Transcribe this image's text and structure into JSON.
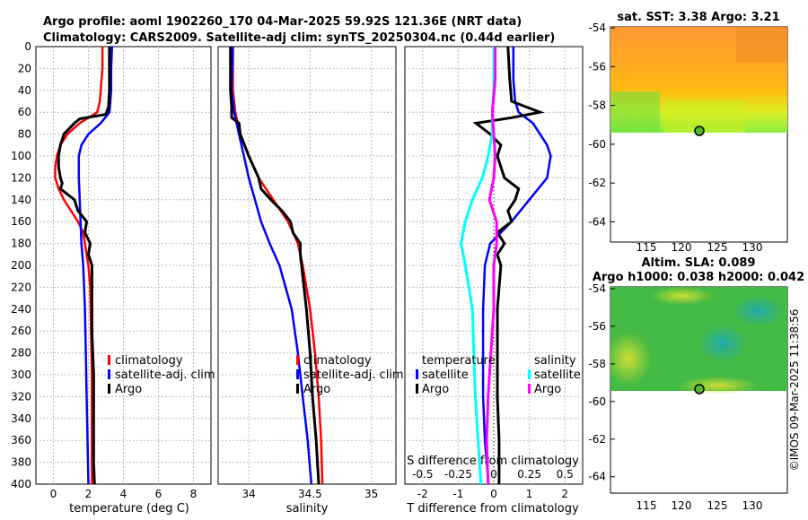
{
  "header": {
    "line1": "Argo profile: aoml 1902260_170 04-Mar-2025 59.92S 121.36E (NRT data)",
    "line2": "Climatology: CARS2009. Satellite-adj clim: synTS_20250304.nc (0.44d earlier)"
  },
  "footer": {
    "credit": "©IMOS 09-Mar-2025 11:38:56"
  },
  "colors": {
    "climatology": "#ff0000",
    "satellite": "#0000ff",
    "argo": "#000000",
    "sat_s": "#00ffff",
    "argo_s": "#ff00ff"
  },
  "chart_data": [
    {
      "type": "line",
      "id": "temperature",
      "xlabel": "temperature (deg C)",
      "ylabel": "",
      "xlim": [
        -1,
        9
      ],
      "ylim": [
        400,
        0
      ],
      "xticks": [
        "0",
        "2",
        "4",
        "6",
        "8"
      ],
      "yticks": [
        "0",
        "20",
        "40",
        "60",
        "80",
        "100",
        "120",
        "140",
        "160",
        "180",
        "200",
        "220",
        "240",
        "260",
        "280",
        "300",
        "320",
        "340",
        "360",
        "380",
        "400"
      ],
      "legend": [
        "climatology",
        "satellite-adj. clim",
        "Argo"
      ],
      "series": [
        {
          "name": "climatology",
          "depth": [
            0,
            20,
            40,
            50,
            60,
            70,
            80,
            90,
            100,
            110,
            120,
            130,
            140,
            150,
            160,
            170,
            180,
            190,
            200,
            220,
            260,
            300,
            340,
            380,
            400
          ],
          "values": [
            2.8,
            2.8,
            2.7,
            2.65,
            2.5,
            1.5,
            0.8,
            0.4,
            0.2,
            0.1,
            0.1,
            0.3,
            0.6,
            1.0,
            1.4,
            1.7,
            1.8,
            1.9,
            2.0,
            2.1,
            2.15,
            2.2,
            2.2,
            2.2,
            2.2
          ]
        },
        {
          "name": "satellite-adj. clim",
          "depth": [
            0,
            20,
            40,
            50,
            60,
            70,
            80,
            90,
            100,
            120,
            140,
            160,
            180,
            200,
            240,
            280,
            320,
            360,
            400
          ],
          "values": [
            3.35,
            3.3,
            3.3,
            3.25,
            3.2,
            2.7,
            2.0,
            1.6,
            1.45,
            1.45,
            1.5,
            1.55,
            1.6,
            1.7,
            1.8,
            1.85,
            1.9,
            1.95,
            2.0
          ]
        },
        {
          "name": "Argo",
          "depth": [
            0,
            20,
            40,
            55,
            62,
            66,
            70,
            80,
            90,
            100,
            110,
            120,
            125,
            130,
            140,
            150,
            160,
            170,
            180,
            190,
            200,
            220,
            260,
            300,
            340,
            380,
            400
          ],
          "values": [
            3.2,
            3.2,
            3.2,
            3.15,
            3.0,
            1.5,
            1.2,
            0.6,
            0.4,
            0.3,
            0.3,
            0.4,
            0.5,
            0.4,
            1.2,
            1.4,
            1.9,
            1.8,
            2.1,
            2.0,
            2.2,
            2.2,
            2.2,
            2.3,
            2.3,
            2.3,
            2.35
          ]
        }
      ]
    },
    {
      "type": "line",
      "id": "salinity",
      "xlabel": "salinity",
      "ylabel": "",
      "xlim": [
        33.75,
        35.2
      ],
      "ylim": [
        400,
        0
      ],
      "xticks": [
        "34",
        "34.5",
        "35"
      ],
      "legend": [
        "climatology",
        "satellite-adj. clim",
        "Argo"
      ],
      "series": [
        {
          "name": "climatology",
          "depth": [
            0,
            40,
            60,
            80,
            100,
            120,
            140,
            160,
            180,
            200,
            240,
            280,
            320,
            360,
            400
          ],
          "values": [
            33.87,
            33.87,
            33.89,
            33.93,
            34.0,
            34.08,
            34.2,
            34.32,
            34.4,
            34.44,
            34.5,
            34.54,
            34.57,
            34.59,
            34.6
          ]
        },
        {
          "name": "satellite-adj. clim",
          "depth": [
            0,
            40,
            60,
            80,
            100,
            120,
            140,
            160,
            180,
            200,
            240,
            280,
            320,
            360,
            400
          ],
          "values": [
            33.87,
            33.86,
            33.88,
            33.92,
            33.96,
            34.0,
            34.05,
            34.1,
            34.17,
            34.25,
            34.35,
            34.4,
            34.44,
            34.48,
            34.51
          ]
        },
        {
          "name": "Argo",
          "depth": [
            0,
            40,
            55,
            65,
            70,
            80,
            100,
            120,
            130,
            140,
            150,
            160,
            170,
            180,
            190,
            200,
            240,
            280,
            320,
            360,
            400
          ],
          "values": [
            33.85,
            33.85,
            33.86,
            33.86,
            33.92,
            33.93,
            34.0,
            34.08,
            34.1,
            34.18,
            34.27,
            34.34,
            34.36,
            34.42,
            34.42,
            34.43,
            34.47,
            34.5,
            34.52,
            34.55,
            34.57
          ]
        }
      ]
    },
    {
      "type": "line",
      "id": "difference",
      "xlabel": "T difference from climatology",
      "xlabel_top": "S difference from climatology",
      "xlim": [
        -2.5,
        2.5
      ],
      "ylim": [
        400,
        0
      ],
      "xticks": [
        "-2",
        "-1",
        "0",
        "1",
        "2"
      ],
      "xticks_s": [
        "-0.5",
        "-0.25",
        "0",
        "0.25",
        "0.5"
      ],
      "legend_t_title": "temperature",
      "legend_s_title": "salinity",
      "legend": [
        "satellite",
        "Argo",
        "satellite",
        "Argo"
      ],
      "series": [
        {
          "name": "T satellite",
          "depth": [
            0,
            30,
            50,
            60,
            70,
            80,
            90,
            100,
            120,
            140,
            160,
            180,
            200,
            240,
            280,
            320,
            360,
            400
          ],
          "values": [
            0.55,
            0.55,
            0.6,
            0.7,
            1.1,
            1.3,
            1.5,
            1.6,
            1.5,
            1.0,
            0.5,
            -0.1,
            -0.25,
            -0.3,
            -0.3,
            -0.3,
            -0.25,
            -0.15
          ]
        },
        {
          "name": "T Argo",
          "depth": [
            0,
            30,
            50,
            60,
            65,
            70,
            80,
            90,
            100,
            110,
            120,
            130,
            140,
            150,
            160,
            170,
            180,
            190,
            200,
            240,
            280,
            320,
            360,
            400
          ],
          "values": [
            0.4,
            0.45,
            0.5,
            1.3,
            0.5,
            -0.5,
            -0.1,
            0.2,
            0.1,
            0.2,
            0.3,
            0.7,
            0.6,
            0.4,
            0.5,
            0.1,
            0.3,
            0.1,
            0.2,
            0.1,
            0.1,
            0.1,
            0.15,
            0.15
          ]
        },
        {
          "name": "S satellite",
          "depth": [
            0,
            40,
            60,
            80,
            100,
            120,
            140,
            160,
            180,
            200,
            240,
            280,
            320,
            360,
            400
          ],
          "values": [
            0.0,
            0.0,
            -0.01,
            -0.01,
            -0.04,
            -0.08,
            -0.15,
            -0.2,
            -0.23,
            -0.2,
            -0.15,
            -0.14,
            -0.13,
            -0.11,
            -0.09
          ]
        },
        {
          "name": "S Argo",
          "depth": [
            0,
            30,
            60,
            80,
            100,
            120,
            140,
            160,
            180,
            200,
            240,
            280,
            320,
            360,
            400
          ],
          "values": [
            0.01,
            0.01,
            -0.01,
            0.0,
            0.01,
            0.0,
            -0.03,
            0.02,
            0.02,
            0.0,
            0.0,
            -0.02,
            -0.04,
            -0.05,
            -0.04
          ]
        }
      ]
    },
    {
      "type": "heatmap",
      "id": "sst_map",
      "title": "sat. SST: 3.38 Argo: 3.21",
      "xticks": [
        "115",
        "120",
        "125",
        "130"
      ],
      "yticks": [
        "-54",
        "-56",
        "-58",
        "-60",
        "-62",
        "-64"
      ],
      "marker": "Argo position"
    },
    {
      "type": "heatmap",
      "id": "sla_map",
      "title": "Altim. SLA: 0.089",
      "subtitle": "Argo h1000: 0.038 h2000: 0.042",
      "xticks": [
        "115",
        "120",
        "125",
        "130"
      ],
      "yticks": [
        "-54",
        "-56",
        "-58",
        "-60",
        "-62",
        "-64"
      ],
      "marker": "Argo position"
    }
  ]
}
